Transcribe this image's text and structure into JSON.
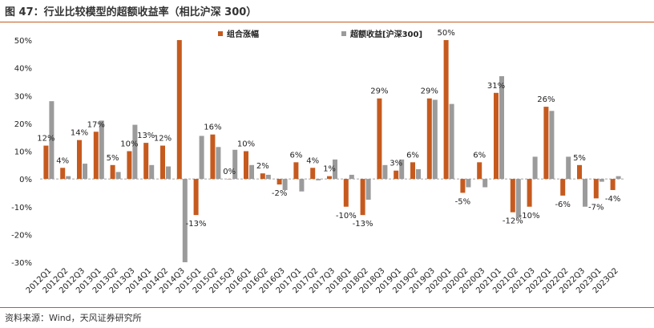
{
  "title": "图 47：行业比较模型的超额收益率（相比沪深 300）",
  "source": "资料来源：Wind，天风证券研究所",
  "chart_data": {
    "type": "bar",
    "categories": [
      "2012Q1",
      "2012Q2",
      "2012Q3",
      "2013Q1",
      "2013Q2",
      "2013Q3",
      "2014Q1",
      "2014Q2",
      "2014Q3",
      "2015Q1",
      "2015Q2",
      "2015Q3",
      "2016Q1",
      "2016Q2",
      "2016Q3",
      "2017Q1",
      "2017Q2",
      "2017Q3",
      "2018Q1",
      "2018Q2",
      "2018Q3",
      "2019Q1",
      "2019Q2",
      "2019Q3",
      "2020Q1",
      "2020Q2",
      "2020Q3",
      "2021Q1",
      "2021Q2",
      "2021Q3",
      "2022Q1",
      "2022Q2",
      "2022Q3",
      "2023Q1",
      "2023Q2"
    ],
    "series": [
      {
        "name": "组合涨幅",
        "color": "#c65a1e",
        "values": [
          12,
          4,
          14,
          17,
          5,
          10,
          13,
          12,
          50,
          -13,
          16,
          0,
          10,
          2,
          -2,
          6,
          4,
          1,
          -10,
          -13,
          29,
          3,
          6,
          29,
          50,
          -5,
          6,
          31,
          -12,
          -10,
          26,
          -6,
          5,
          -7,
          -4
        ]
      },
      {
        "name": "超额收益[沪深300]",
        "color": "#9b9b9b",
        "values": [
          28,
          1,
          5.5,
          21,
          2.5,
          19.5,
          5,
          4.5,
          -30,
          15.5,
          11.5,
          10.5,
          5,
          1.5,
          -4,
          -4.5,
          -0.5,
          7,
          1.5,
          -7.5,
          5,
          7,
          3.5,
          28.5,
          27,
          -3,
          -3,
          37,
          -14,
          8,
          24.5,
          8,
          -10,
          -1,
          1
        ]
      }
    ],
    "data_labels": [
      "12%",
      "4%",
      "14%",
      "17%",
      "5%",
      "10%",
      "13%",
      "12%",
      "",
      "-13%",
      "16%",
      "0%",
      "10%",
      "2%",
      "-2%",
      "6%",
      "4%",
      "1%",
      "-10%",
      "-13%",
      "29%",
      "3%",
      "6%",
      "29%",
      "50%",
      "-5%",
      "6%",
      "31%",
      "-12%",
      "-10%",
      "26%",
      "-6%",
      "5%",
      "-7%",
      "-4%"
    ],
    "yticks": [
      "50%",
      "40%",
      "30%",
      "20%",
      "10%",
      "0%",
      "-10%",
      "-20%",
      "-30%"
    ],
    "ylim": [
      -30,
      50
    ],
    "legend": "top"
  }
}
